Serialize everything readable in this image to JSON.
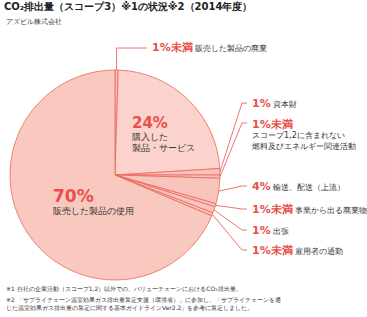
{
  "chart_data": {
    "type": "pie",
    "title": "CO₂排出量（スコープ3）※1の状況※2（2014年度）",
    "subtitle": "アズビル株式会社",
    "categories": [
      "販売した製品の廃棄",
      "購入した\n製品・サービス",
      "資本財",
      "スコープ1,2に含まれない\n燃料及びエネルギー関連活動",
      "輸送、配送（上流）",
      "事業から出る廃棄物",
      "出張",
      "雇用者の通勤",
      "販売した製品の使用"
    ],
    "values": [
      0.5,
      24,
      1,
      0.5,
      4,
      0.5,
      1,
      0.5,
      70
    ],
    "value_labels": [
      "1%未満",
      "24%",
      "1%",
      "1%未満",
      "4%",
      "1%未満",
      "1%",
      "1%未満",
      "70%"
    ],
    "colors": [
      "#f8c4bb",
      "#fbd3cc",
      "#f8c4bb",
      "#f8c4bb",
      "#f8c4bb",
      "#f8c4bb",
      "#f8c4bb",
      "#f8c4bb",
      "#f9c9c0"
    ],
    "data_labels": true,
    "annotations": [
      "※1 自社の企業活動（スコープ1,2）以外での、バリューチェーンにおけるCO₂排出量。",
      "※2 「サプライチェーン温室効果ガス排出量算定支援（環境省）」に参加し、「サプライチェーンを通\nじた温室効果ガス排出量の算定に関する基本ガイドラインVer2.2」を参考に算定しました。"
    ]
  }
}
